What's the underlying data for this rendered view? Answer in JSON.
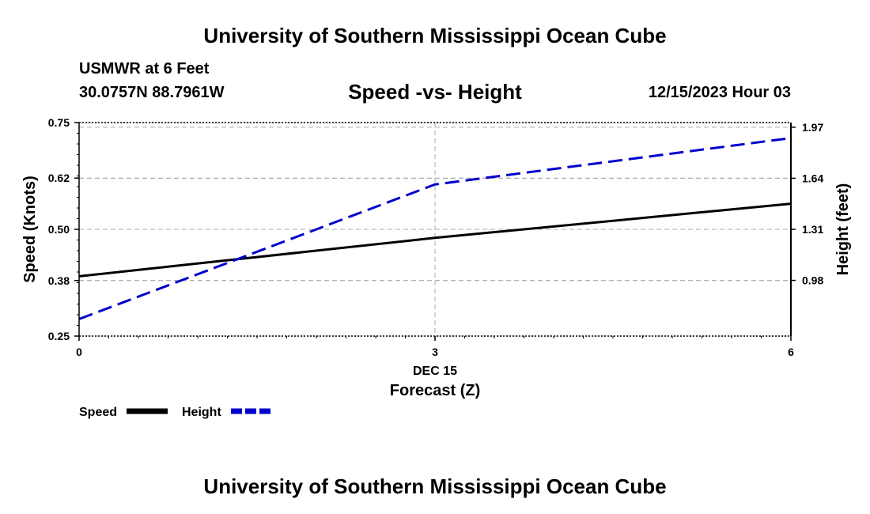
{
  "header": {
    "title_top": "University of Southern Mississippi Ocean Cube",
    "station": "USMWR at 6 Feet",
    "coords": "30.0757N  88.7961W",
    "date_hour": "12/15/2023 Hour 03",
    "title_bottom": "University of Southern Mississippi Ocean Cube"
  },
  "colors": {
    "speed": "#000000",
    "height": "#0000cc",
    "grid": "#aaaaaa"
  },
  "chart_data": {
    "type": "line",
    "title": "Speed -vs- Height",
    "xlabel": "Forecast (Z)",
    "date_label": "DEC 15",
    "x": [
      0,
      3,
      6
    ],
    "x_ticks": [
      "0",
      "3",
      "6"
    ],
    "xlim": [
      0,
      6
    ],
    "y_left": {
      "label": "Speed (Knots)",
      "lim": [
        0.25,
        0.75
      ],
      "ticks": [
        0.25,
        0.38,
        0.5,
        0.62,
        0.75
      ],
      "tick_labels": [
        "0.25",
        "0.38",
        "0.50",
        "0.62",
        "0.75"
      ]
    },
    "y_right": {
      "label": "Height (feet)",
      "lim": [
        0.62,
        2.0
      ],
      "ticks": [
        0.98,
        1.31,
        1.64,
        1.97
      ],
      "tick_labels": [
        "0.98",
        "1.31",
        "1.64",
        "1.97"
      ]
    },
    "series": [
      {
        "name": "Speed",
        "axis": "left",
        "style": "solid",
        "values": [
          0.39,
          0.48,
          0.56
        ]
      },
      {
        "name": "Height",
        "axis": "right",
        "style": "dashed",
        "values": [
          0.73,
          1.6,
          1.9
        ]
      }
    ],
    "grid": true,
    "legend": {
      "position": "bottom-left",
      "items": [
        "Speed",
        "Height"
      ]
    }
  }
}
